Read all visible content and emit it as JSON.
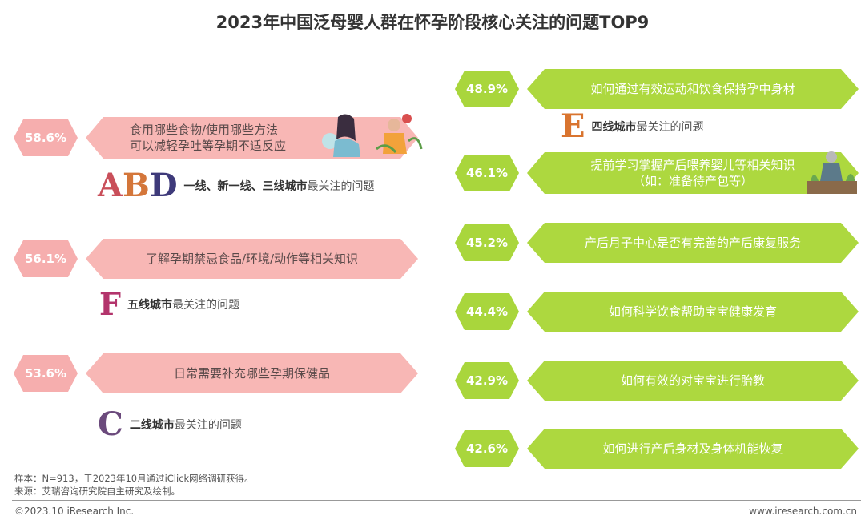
{
  "title": "2023年中国泛母婴人群在怀孕阶段核心关注的问题TOP9",
  "chart_data": {
    "type": "bar",
    "categories": [
      "食用哪些食物/使用哪些方法可以减轻孕吐等孕期不适反应",
      "了解孕期禁忌食品/环境/动作等相关知识",
      "日常需要补充哪些孕期保健品",
      "如何通过有效运动和饮食保持孕中身材",
      "提前学习掌握产后喂养婴儿等相关知识（如：准备待产包等）",
      "产后月子中心是否有完善的产后康复服务",
      "如何科学饮食帮助宝宝健康发育",
      "如何有效的对宝宝进行胎教",
      "如何进行产后身材及身体机能恢复"
    ],
    "values": [
      58.6,
      56.1,
      53.6,
      48.9,
      46.1,
      45.2,
      44.4,
      42.9,
      42.6
    ],
    "unit": "%"
  },
  "left_items": [
    {
      "pct": "58.6%",
      "line1": "食用哪些食物/使用哪些方法",
      "line2": "可以减轻孕吐等孕期不适反应"
    },
    {
      "pct": "56.1%",
      "line1": "了解孕期禁忌食品/环境/动作等相关知识",
      "line2": ""
    },
    {
      "pct": "53.6%",
      "line1": "日常需要补充哪些孕期保健品",
      "line2": ""
    }
  ],
  "right_items": [
    {
      "pct": "48.9%",
      "line1": "如何通过有效运动和饮食保持孕中身材",
      "line2": ""
    },
    {
      "pct": "46.1%",
      "line1": "提前学习掌握产后喂养婴儿等相关知识",
      "line2": "（如：准备待产包等）"
    },
    {
      "pct": "45.2%",
      "line1": "产后月子中心是否有完善的产后康复服务",
      "line2": ""
    },
    {
      "pct": "44.4%",
      "line1": "如何科学饮食帮助宝宝健康发育",
      "line2": ""
    },
    {
      "pct": "42.9%",
      "line1": "如何有效的对宝宝进行胎教",
      "line2": ""
    },
    {
      "pct": "42.6%",
      "line1": "如何进行产后身材及身体机能恢复",
      "line2": ""
    }
  ],
  "city_notes": {
    "abd": {
      "letters": [
        "A",
        "B",
        "D"
      ],
      "bold": "一线、新一线、三线城市",
      "rest": "最关注的问题"
    },
    "f": {
      "letters": [
        "F"
      ],
      "bold": "五线城市",
      "rest": "最关注的问题"
    },
    "c": {
      "letters": [
        "C"
      ],
      "bold": "二线城市",
      "rest": "最关注的问题"
    },
    "e": {
      "letters": [
        "E"
      ],
      "bold": "四线城市",
      "rest": "最关注的问题"
    }
  },
  "footer": {
    "sample": "样本：N=913，于2023年10月通过iClick网络调研获得。",
    "source": "来源：艾瑞咨询研究院自主研究及绘制。",
    "copyright": "©2023.10 iResearch Inc.",
    "website": "www.iresearch.com.cn"
  },
  "colors": {
    "pink": "#f6aeae",
    "green": "#a9d63c"
  }
}
